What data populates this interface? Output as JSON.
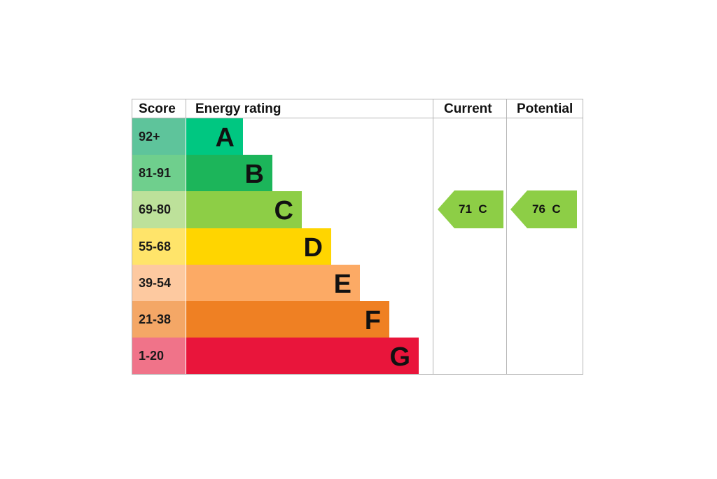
{
  "headers": {
    "score": "Score",
    "energy_rating": "Energy rating",
    "current": "Current",
    "potential": "Potential"
  },
  "chart_data": {
    "type": "bar",
    "title": "",
    "bands": [
      {
        "score": "92+",
        "letter": "A",
        "color": "#008054",
        "score_bg": "#5ec49b",
        "bar_color": "#00c781"
      },
      {
        "score": "81-91",
        "letter": "B",
        "color": "#19b459",
        "score_bg": "#6fcf8d",
        "bar_color": "#1cb55a"
      },
      {
        "score": "69-80",
        "letter": "C",
        "color": "#8dce46",
        "score_bg": "#bde19a",
        "bar_color": "#8dce46"
      },
      {
        "score": "55-68",
        "letter": "D",
        "color": "#ffd500",
        "score_bg": "#ffe46a",
        "bar_color": "#ffd500"
      },
      {
        "score": "39-54",
        "letter": "E",
        "color": "#fcaa65",
        "score_bg": "#fdc9a0",
        "bar_color": "#fcaa65"
      },
      {
        "score": "21-38",
        "letter": "F",
        "color": "#ef8023",
        "score_bg": "#f4a766",
        "bar_color": "#ef8023"
      },
      {
        "score": "1-20",
        "letter": "G",
        "color": "#e9153b",
        "score_bg": "#f07389",
        "bar_color": "#e9153b"
      }
    ],
    "current": {
      "value": 71,
      "band": "C",
      "label": "71  C",
      "color": "#8dce46"
    },
    "potential": {
      "value": 76,
      "band": "C",
      "label": "76  C",
      "color": "#8dce46"
    }
  }
}
